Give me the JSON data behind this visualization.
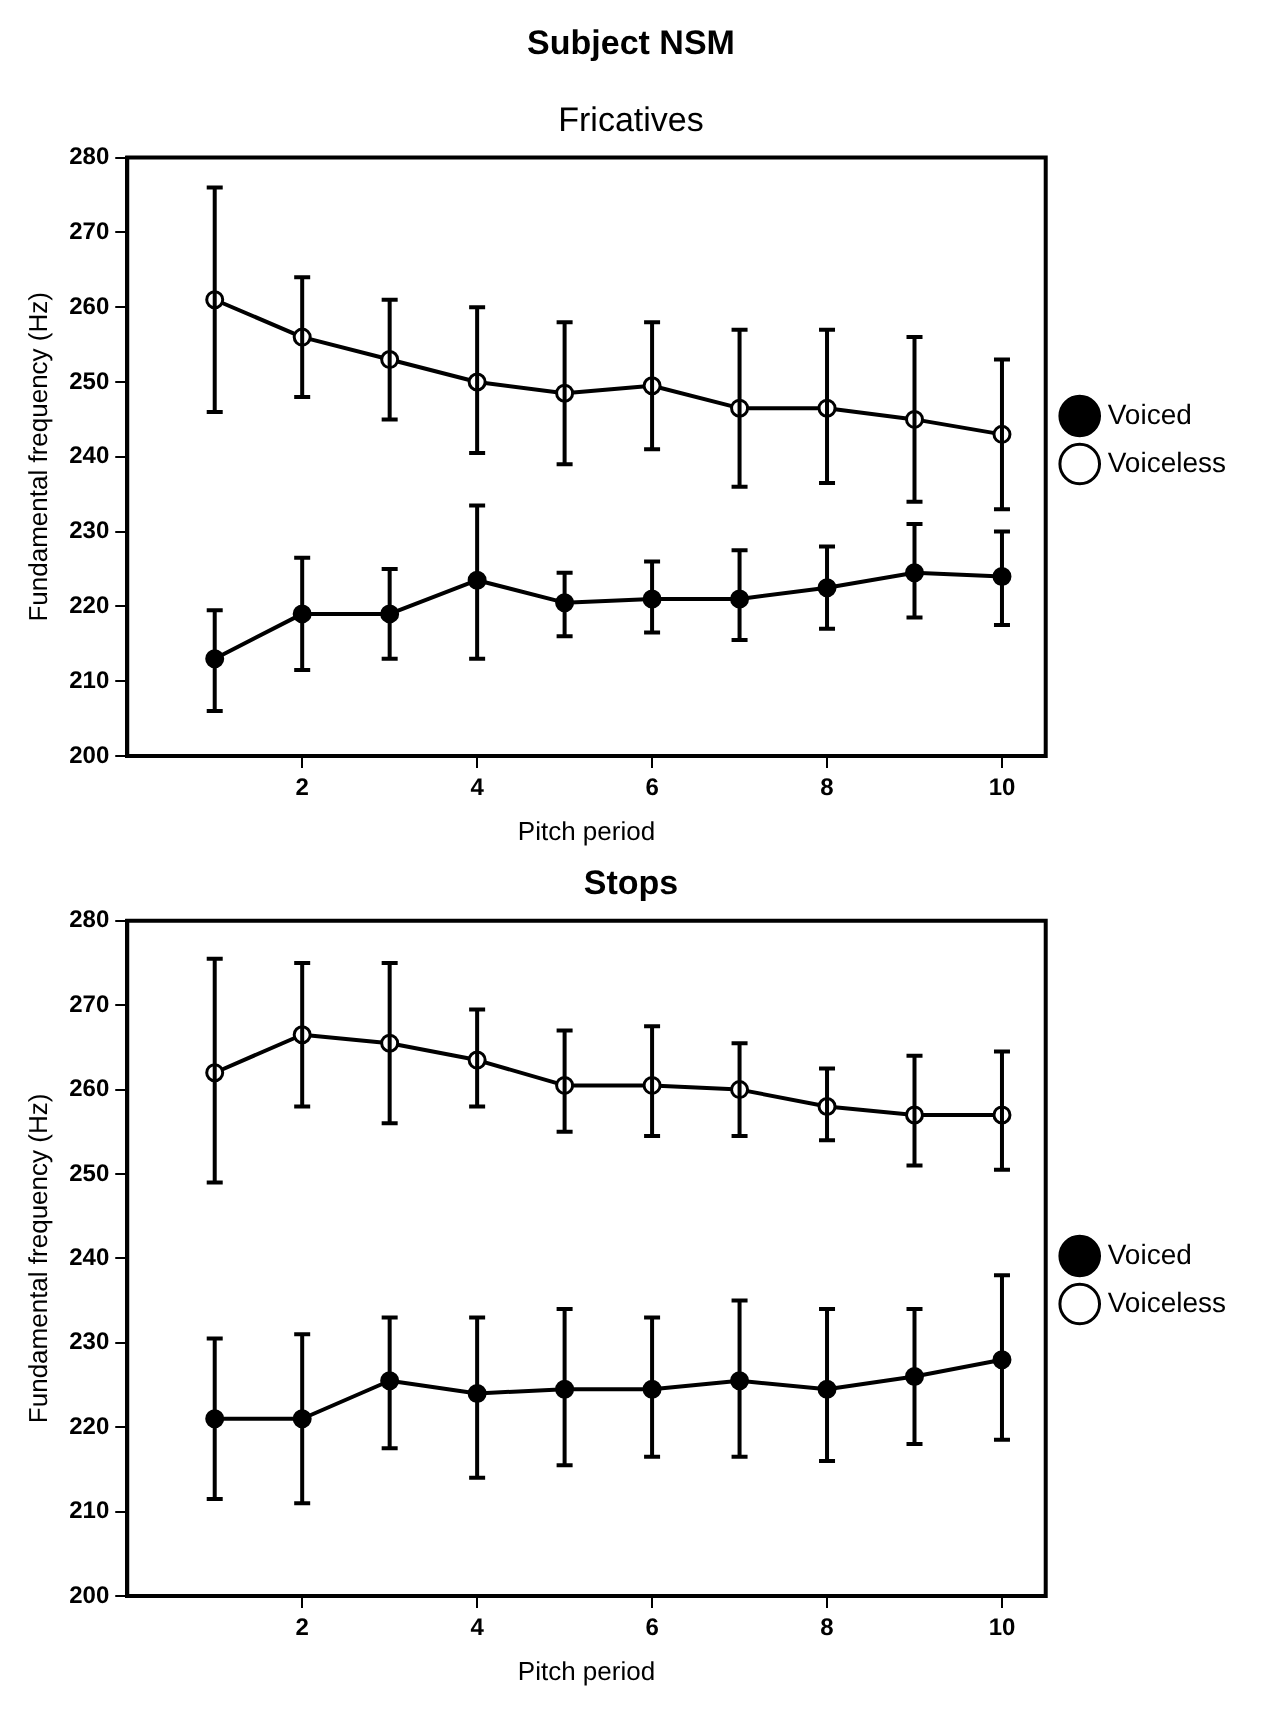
{
  "chart_data": [
    {
      "type": "line",
      "title": "Subject NSM",
      "subtitle": "Fricatives",
      "xlabel": "Pitch period",
      "ylabel": "Fundamental frequency (Hz)",
      "x": [
        1,
        2,
        3,
        4,
        5,
        6,
        7,
        8,
        9,
        10
      ],
      "xlim": [
        0,
        10.5
      ],
      "xticks": [
        2,
        4,
        6,
        8,
        10
      ],
      "ylim": [
        200,
        280
      ],
      "yticks": [
        200,
        210,
        220,
        230,
        240,
        250,
        260,
        270,
        280
      ],
      "legend": "right",
      "marker": "circle",
      "line_style": "solid",
      "grid": false,
      "series": [
        {
          "name": "Voiced",
          "color": "#000000",
          "values": [
            213,
            219,
            219,
            223.5,
            220.5,
            221,
            221,
            222.5,
            224.5,
            224
          ],
          "errors": [
            [
              206,
              219.5
            ],
            [
              211.5,
              226.5
            ],
            [
              213,
              225
            ],
            [
              213,
              233.5
            ],
            [
              216,
              224.5
            ],
            [
              216.5,
              226
            ],
            [
              215.5,
              227.5
            ],
            [
              217,
              228
            ],
            [
              218.5,
              231
            ],
            [
              217.5,
              230
            ]
          ]
        },
        {
          "name": "Voiceless",
          "color": "#000000",
          "values": [
            261,
            256,
            253,
            250,
            248.5,
            249.5,
            246.5,
            246.5,
            245,
            243
          ],
          "errors": [
            [
              246,
              276
            ],
            [
              248,
              264
            ],
            [
              245,
              261
            ],
            [
              240.5,
              260
            ],
            [
              239,
              258
            ],
            [
              241,
              258
            ],
            [
              236,
              257
            ],
            [
              236.5,
              257
            ],
            [
              234,
              256
            ],
            [
              233,
              253
            ]
          ]
        }
      ]
    },
    {
      "type": "line",
      "title": "Stops",
      "xlabel": "Pitch period",
      "ylabel": "Fundamental frequency (Hz)",
      "x": [
        1,
        2,
        3,
        4,
        5,
        6,
        7,
        8,
        9,
        10
      ],
      "xlim": [
        0,
        10.5
      ],
      "xticks": [
        2,
        4,
        6,
        8,
        10
      ],
      "ylim": [
        200,
        280
      ],
      "yticks": [
        200,
        210,
        220,
        230,
        240,
        250,
        260,
        270,
        280
      ],
      "legend": "right",
      "marker": "circle",
      "line_style": "solid",
      "grid": false,
      "series": [
        {
          "name": "Voiced",
          "color": "#000000",
          "values": [
            221,
            221,
            225.5,
            224,
            224.5,
            224.5,
            225.5,
            224.5,
            226,
            228
          ],
          "errors": [
            [
              211.5,
              230.5
            ],
            [
              211,
              231
            ],
            [
              217.5,
              233
            ],
            [
              214,
              233
            ],
            [
              215.5,
              234
            ],
            [
              216.5,
              233
            ],
            [
              216.5,
              235
            ],
            [
              216,
              234
            ],
            [
              218,
              234
            ],
            [
              218.5,
              238
            ]
          ]
        },
        {
          "name": "Voiceless",
          "color": "#000000",
          "values": [
            262,
            266.5,
            265.5,
            263.5,
            260.5,
            260.5,
            260,
            258,
            257,
            257
          ],
          "errors": [
            [
              249,
              275.5
            ],
            [
              258,
              275
            ],
            [
              256,
              275
            ],
            [
              258,
              269.5
            ],
            [
              255,
              267
            ],
            [
              254.5,
              267.5
            ],
            [
              254.5,
              265.5
            ],
            [
              254,
              262.5
            ],
            [
              251,
              264
            ],
            [
              250.5,
              264.5
            ]
          ]
        }
      ]
    }
  ]
}
